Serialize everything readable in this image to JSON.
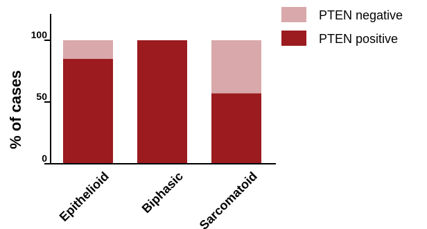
{
  "chart_data": {
    "type": "bar",
    "stacked": true,
    "categories": [
      "Epithelioid",
      "Biphasic",
      "Sarcomatoid"
    ],
    "series": [
      {
        "name": "PTEN positive",
        "values": [
          85,
          100,
          57
        ],
        "color": "#9b1b1f"
      },
      {
        "name": "PTEN negative",
        "values": [
          15,
          0,
          43
        ],
        "color": "#d9a8aa"
      }
    ],
    "ylabel": "% of cases",
    "xlabel": "",
    "yticks": [
      "0",
      "50",
      "100"
    ],
    "ylim": [
      0,
      110
    ],
    "grid": false,
    "legend_position": "top-right"
  }
}
